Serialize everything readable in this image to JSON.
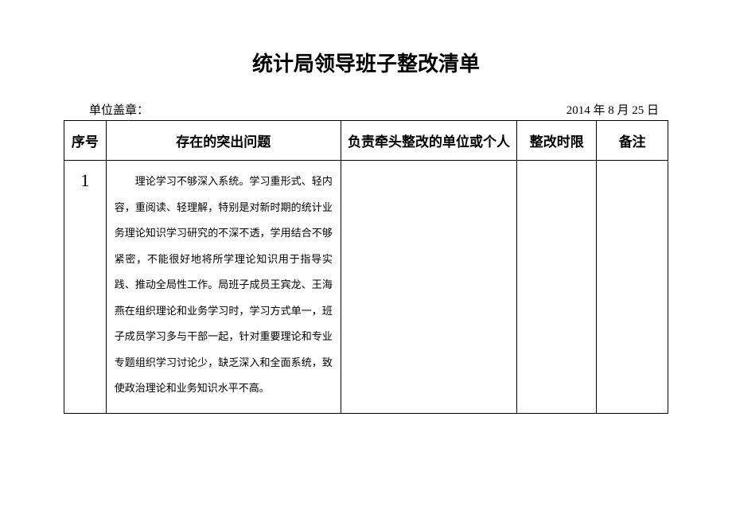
{
  "title": "统计局领导班子整改清单",
  "meta": {
    "seal_label": "单位盖章：",
    "date": "2014 年 8 月 25 日"
  },
  "table": {
    "headers": {
      "seq": "序号",
      "issue": "存在的突出问题",
      "responsible": "负责牵头整改的单位或个人",
      "deadline": "整改时限",
      "remark": "备注"
    },
    "rows": [
      {
        "seq": "1",
        "issue": "理论学习不够深入系统。学习重形式、轻内容，重阅读、轻理解，特别是对新时期的统计业务理论知识学习研究的不深不透，学用结合不够紧密，不能很好地将所学理论知识用于指导实践、推动全局性工作。局班子成员王宾龙、王海燕在组织理论和业务学习时，学习方式单一，班子成员学习多与干部一起，针对重要理论和专业专题组织学习讨论少，缺乏深入和全面系统，致使政治理论和业务知识水平不高。",
        "responsible": "",
        "deadline": "",
        "remark": ""
      }
    ]
  }
}
